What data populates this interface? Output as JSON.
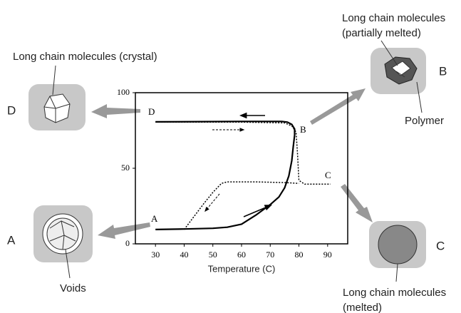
{
  "chart_data": {
    "type": "line",
    "x_label": "Temperature (C)",
    "xlim": [
      23,
      97
    ],
    "xticks": [
      30,
      40,
      50,
      60,
      70,
      80,
      90
    ],
    "ylim": [
      0,
      100
    ],
    "yticks": [
      0,
      50,
      100
    ],
    "series": [
      {
        "color": "#000000",
        "style": "solid",
        "x": [
          30,
          40,
          50,
          55,
          60,
          65,
          70,
          73,
          75,
          76.5,
          77.5,
          78,
          78.5,
          78.5,
          77.5,
          76,
          74,
          60,
          30
        ],
        "values": [
          9.5,
          9.8,
          10.3,
          11,
          13,
          19,
          26,
          31,
          37,
          45,
          55,
          64,
          72,
          76,
          79,
          80.5,
          81,
          81,
          80.7
        ]
      },
      {
        "color": "#000000",
        "style": "dotted",
        "x": [
          30,
          60,
          75,
          77.5,
          79,
          79.5,
          80,
          82,
          91
        ],
        "values": [
          80.5,
          80.5,
          80,
          78,
          74,
          60,
          42,
          39.5,
          39.5
        ]
      },
      {
        "color": "#000000",
        "style": "dotted",
        "x": [
          40,
          43,
          47,
          50,
          53,
          55,
          65,
          75,
          80
        ],
        "values": [
          9.5,
          17,
          27,
          34,
          40,
          41,
          41,
          40.5,
          40
        ]
      }
    ],
    "annotations": [
      "D",
      "B",
      "C",
      "A"
    ]
  },
  "callouts": {
    "d": {
      "letter": "D",
      "caption": "Long chain molecules (crystal)"
    },
    "b": {
      "letter": "B",
      "caption_1": "Long chain molecules",
      "caption_2": "(partially melted)",
      "note": "Polymer"
    },
    "a": {
      "letter": "A",
      "note": "Voids"
    },
    "c": {
      "letter": "C",
      "caption_1": "Long chain molecules",
      "caption_2": "(melted)"
    }
  }
}
